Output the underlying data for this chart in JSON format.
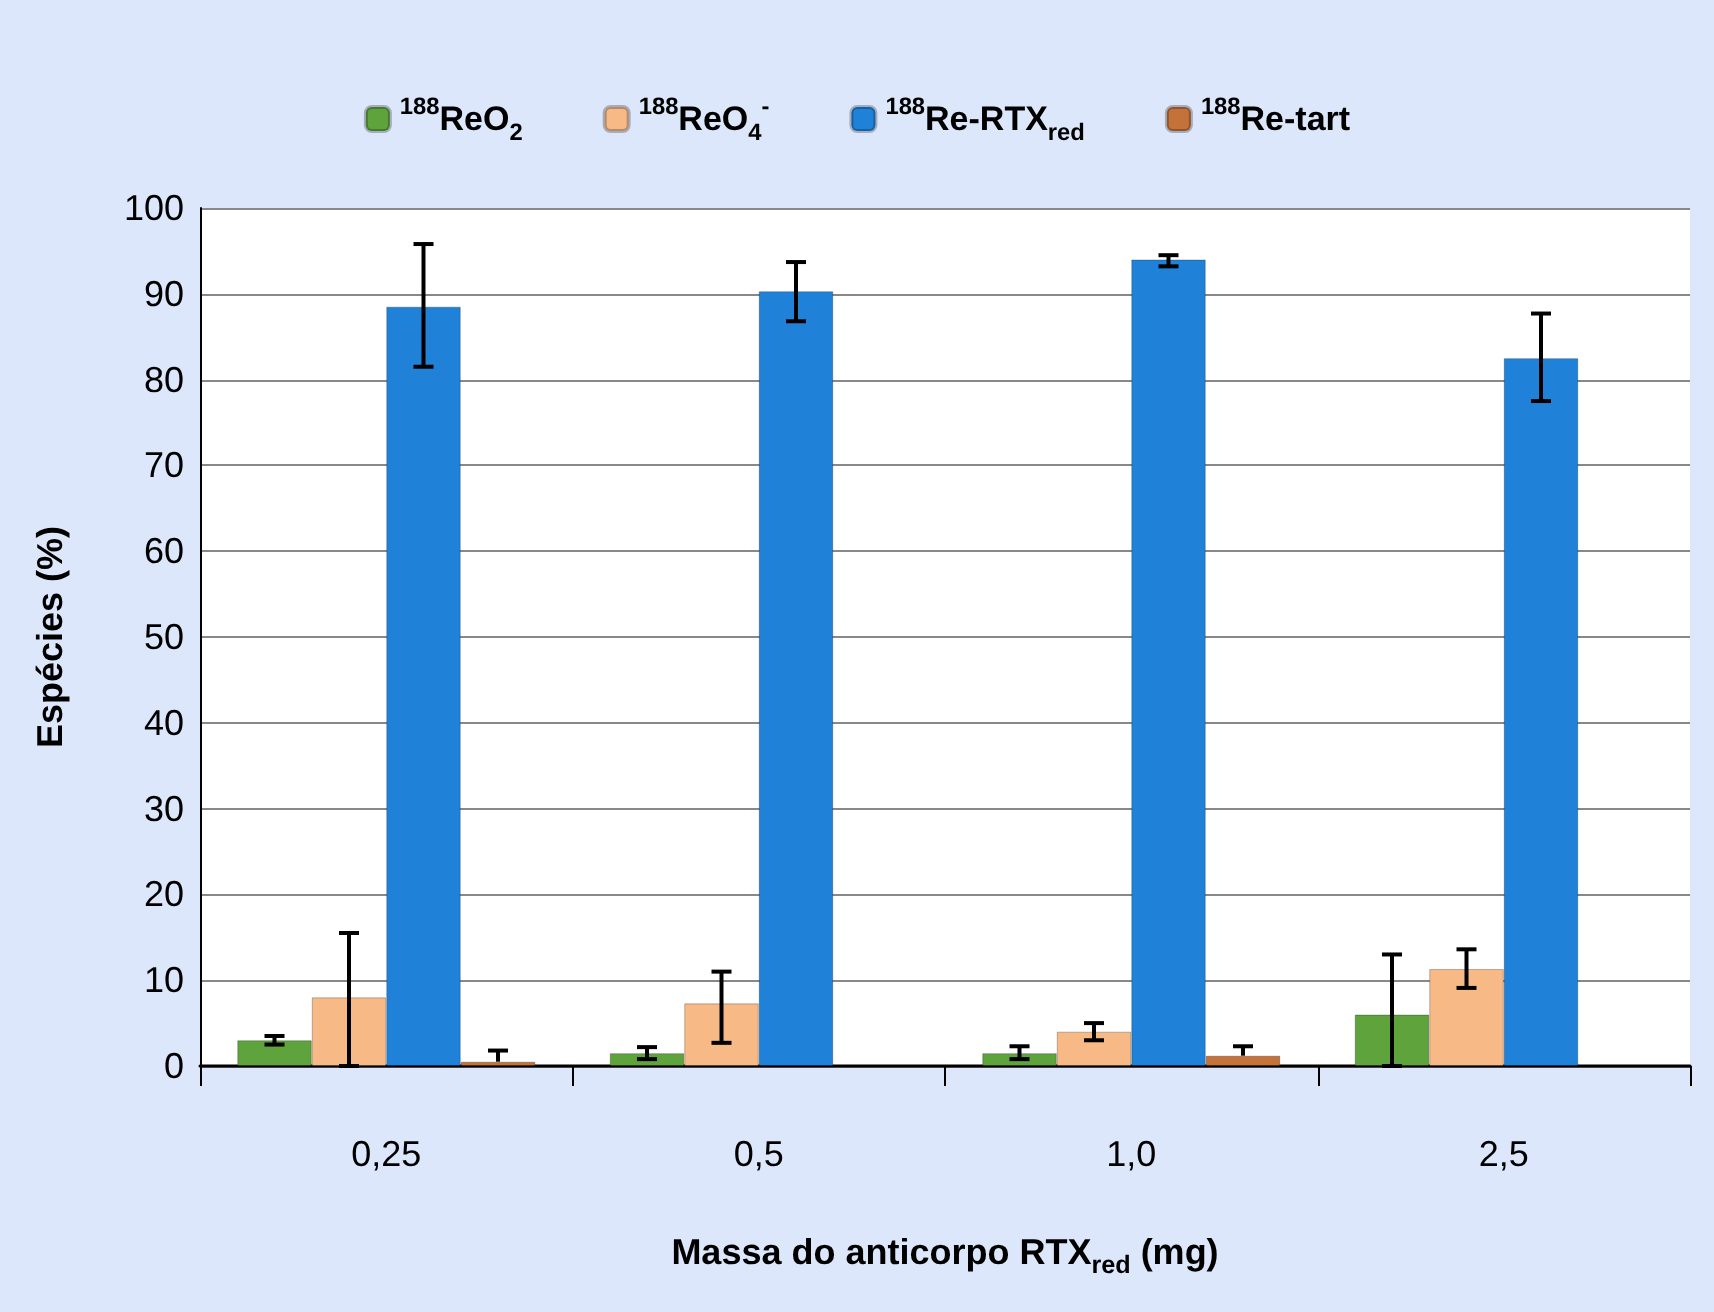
{
  "chart_data": {
    "type": "bar",
    "xlabel": "Massa do anticorpo RTX$_{red}$ (mg)",
    "ylabel": "Espécies (%)",
    "categories": [
      "0,25",
      "0,5",
      "1,0",
      "2,5"
    ],
    "ylim": [
      0,
      100
    ],
    "yticks": [
      0,
      10,
      20,
      30,
      40,
      50,
      60,
      70,
      80,
      90,
      100
    ],
    "grid": "y",
    "legend": "top",
    "series": [
      {
        "name": "$^{188}$ReO$_{2}$",
        "color": "#5ea33c",
        "values": [
          3,
          1.5,
          1.5,
          6
        ],
        "errors": [
          [
            2.5,
            3.5
          ],
          [
            0.8,
            2.2
          ],
          [
            0.8,
            2.3
          ],
          [
            0,
            13
          ]
        ]
      },
      {
        "name": "$^{188}$ReO$_{4}$$^{-}$",
        "color": "#f7b985",
        "values": [
          8,
          7.3,
          4,
          11.3
        ],
        "errors": [
          [
            0,
            15.5
          ],
          [
            2.7,
            11
          ],
          [
            3,
            5
          ],
          [
            9.1,
            13.6
          ]
        ]
      },
      {
        "name": "$^{188}$Re-RTX$_{red}$",
        "color": "#1f82d8",
        "values": [
          88.5,
          90.3,
          94,
          82.5
        ],
        "errors": [
          [
            81.5,
            95.8
          ],
          [
            86.8,
            93.7
          ],
          [
            93.2,
            94.5
          ],
          [
            77.5,
            87.7
          ]
        ]
      },
      {
        "name": "$^{188}$Re-tart",
        "color": "#c4713a",
        "values": [
          0.5,
          null,
          1.2,
          null
        ],
        "errors": [
          [
            0.5,
            1.8
          ],
          null,
          [
            1.2,
            2.3
          ],
          null
        ]
      }
    ]
  }
}
